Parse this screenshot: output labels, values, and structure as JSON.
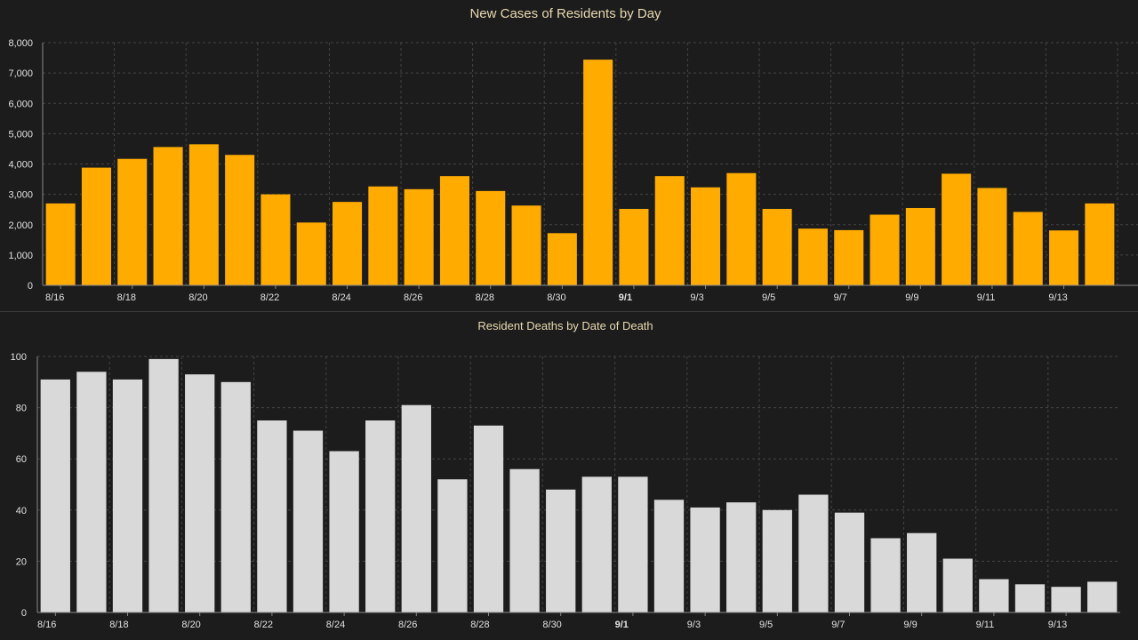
{
  "colors": {
    "background": "#1c1c1c",
    "cases_bar": "#ffab00",
    "deaths_bar": "#d9d9d9",
    "title_text": "#e8d9b0",
    "tick_text": "#e0e0e0"
  },
  "chart_data": [
    {
      "type": "bar",
      "title": "New Cases of Residents by Day",
      "xlabel": "",
      "ylabel": "",
      "categories": [
        "8/16",
        "8/17",
        "8/18",
        "8/19",
        "8/20",
        "8/21",
        "8/22",
        "8/23",
        "8/24",
        "8/25",
        "8/26",
        "8/27",
        "8/28",
        "8/29",
        "8/30",
        "8/31",
        "9/1",
        "9/2",
        "9/3",
        "9/4",
        "9/5",
        "9/6",
        "9/7",
        "9/8",
        "9/9",
        "9/10",
        "9/11",
        "9/12",
        "9/13",
        "9/14",
        "9/15"
      ],
      "values": [
        2700,
        3880,
        4170,
        4560,
        4650,
        4300,
        3000,
        2070,
        2750,
        3260,
        3170,
        3600,
        3110,
        2630,
        1720,
        7440,
        2520,
        3600,
        3230,
        3700,
        2520,
        1870,
        1820,
        2330,
        2550,
        3680,
        3210,
        2420,
        1810,
        2700,
        0
      ],
      "x_tick_labels": [
        "8/16",
        "8/18",
        "8/20",
        "8/22",
        "8/24",
        "8/26",
        "8/28",
        "8/30",
        "9/1",
        "9/3",
        "9/5",
        "9/7",
        "9/9",
        "9/11",
        "9/13"
      ],
      "highlight_tick": "9/1",
      "ylim": [
        0,
        8000
      ],
      "y_ticks": [
        "0",
        "1,000",
        "2,000",
        "3,000",
        "4,000",
        "5,000",
        "6,000",
        "7,000",
        "8,000"
      ],
      "grid": true,
      "legend": "none"
    },
    {
      "type": "bar",
      "title": "Resident Deaths by Date of Death",
      "xlabel": "",
      "ylabel": "",
      "categories": [
        "8/16",
        "8/17",
        "8/18",
        "8/19",
        "8/20",
        "8/21",
        "8/22",
        "8/23",
        "8/24",
        "8/25",
        "8/26",
        "8/27",
        "8/28",
        "8/29",
        "8/30",
        "8/31",
        "9/1",
        "9/2",
        "9/3",
        "9/4",
        "9/5",
        "9/6",
        "9/7",
        "9/8",
        "9/9",
        "9/10",
        "9/11",
        "9/12",
        "9/13",
        "9/14"
      ],
      "values": [
        91,
        94,
        91,
        99,
        93,
        90,
        75,
        71,
        63,
        75,
        81,
        52,
        73,
        56,
        48,
        53,
        53,
        44,
        41,
        43,
        40,
        46,
        39,
        29,
        31,
        21,
        13,
        11,
        10,
        12
      ],
      "x_tick_labels": [
        "8/16",
        "8/18",
        "8/20",
        "8/22",
        "8/24",
        "8/26",
        "8/28",
        "8/30",
        "9/1",
        "9/3",
        "9/5",
        "9/7",
        "9/9",
        "9/11",
        "9/13"
      ],
      "highlight_tick": "9/1",
      "ylim": [
        0,
        100
      ],
      "y_ticks": [
        "0",
        "20",
        "40",
        "60",
        "80",
        "100"
      ],
      "grid": true,
      "legend": "none"
    }
  ]
}
